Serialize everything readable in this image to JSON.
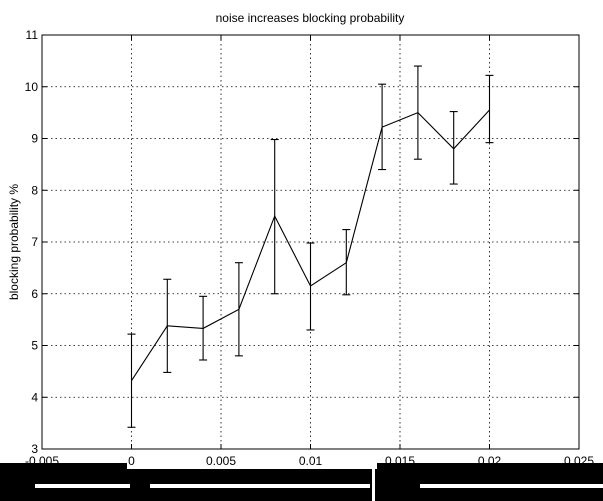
{
  "chart_data": {
    "type": "line",
    "title": "noise increases blocking probability",
    "xlabel": "",
    "ylabel": "blocking probability %",
    "xlim": [
      -0.005,
      0.025
    ],
    "ylim": [
      3,
      11
    ],
    "xticks": [
      -0.005,
      0,
      0.005,
      0.01,
      0.015,
      0.02,
      0.025
    ],
    "xtick_labels": [
      "-0.005",
      "0",
      "0.005",
      "0.01",
      "0.015",
      "0.02",
      "0.025"
    ],
    "yticks": [
      3,
      4,
      5,
      6,
      7,
      8,
      9,
      10,
      11
    ],
    "ytick_labels": [
      "3",
      "4",
      "5",
      "6",
      "7",
      "8",
      "9",
      "10",
      "11"
    ],
    "grid": true,
    "series": [
      {
        "x": [
          0,
          0.002,
          0.004,
          0.006,
          0.008,
          0.01,
          0.012,
          0.014,
          0.016,
          0.018,
          0.02
        ],
        "y": [
          4.32,
          5.38,
          5.33,
          5.7,
          7.5,
          6.15,
          6.6,
          9.22,
          9.5,
          8.8,
          9.55
        ],
        "err_low": [
          3.42,
          4.48,
          4.72,
          4.8,
          6.0,
          5.3,
          5.98,
          8.4,
          8.6,
          8.12,
          8.92
        ],
        "err_high": [
          5.22,
          6.28,
          5.95,
          6.6,
          8.98,
          6.98,
          7.24,
          10.05,
          10.4,
          9.52,
          10.22
        ]
      }
    ]
  }
}
